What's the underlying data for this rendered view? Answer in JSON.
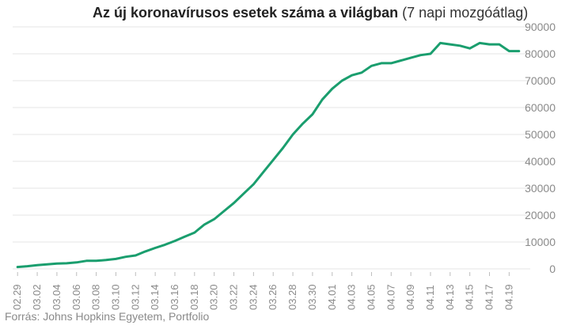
{
  "chart_data": {
    "type": "line",
    "title_bold": "Az új koronavírusos esetek száma a világban",
    "title_rest": "(7 napi mozgóátlag)",
    "xlabel": "",
    "ylabel": "",
    "ylim": [
      0,
      90000
    ],
    "y_ticks": [
      0,
      10000,
      20000,
      30000,
      40000,
      50000,
      60000,
      70000,
      80000,
      90000
    ],
    "grid": true,
    "axis_side": "right",
    "color": "#1a9e6e",
    "x": [
      "02.29",
      "03.01",
      "03.02",
      "03.03",
      "03.04",
      "03.05",
      "03.06",
      "03.07",
      "03.08",
      "03.09",
      "03.10",
      "03.11",
      "03.12",
      "03.13",
      "03.14",
      "03.15",
      "03.16",
      "03.17",
      "03.18",
      "03.19",
      "03.20",
      "03.21",
      "03.22",
      "03.23",
      "03.24",
      "03.25",
      "03.26",
      "03.27",
      "03.28",
      "03.29",
      "03.30",
      "03.31",
      "04.01",
      "04.02",
      "04.03",
      "04.04",
      "04.05",
      "04.06",
      "04.07",
      "04.08",
      "04.09",
      "04.10",
      "04.11",
      "04.12",
      "04.13",
      "04.14",
      "04.15",
      "04.16",
      "04.17",
      "04.18",
      "04.19",
      "04.20"
    ],
    "x_tick_labels": [
      "02.29",
      "03.02",
      "03.04",
      "03.06",
      "03.08",
      "03.10",
      "03.12",
      "03.14",
      "03.16",
      "03.18",
      "03.20",
      "03.22",
      "03.24",
      "03.26",
      "03.28",
      "03.30",
      "04.01",
      "04.03",
      "04.05",
      "04.07",
      "04.09",
      "04.11",
      "04.13",
      "04.15",
      "04.17",
      "04.19"
    ],
    "values": [
      700,
      1000,
      1400,
      1700,
      2000,
      2100,
      2400,
      3000,
      3000,
      3300,
      3700,
      4500,
      5000,
      6500,
      7800,
      9000,
      10400,
      12000,
      13500,
      16500,
      18500,
      21500,
      24500,
      28000,
      31500,
      36000,
      40500,
      45000,
      50000,
      54000,
      57500,
      63000,
      67000,
      70000,
      72000,
      73000,
      75500,
      76500,
      76500,
      77500,
      78500,
      79500,
      80000,
      84000,
      83500,
      83000,
      82000,
      84000,
      83500,
      83500,
      81000,
      81000
    ]
  },
  "source": "Forrás: Johns Hopkins Egyetem, Portfolio"
}
